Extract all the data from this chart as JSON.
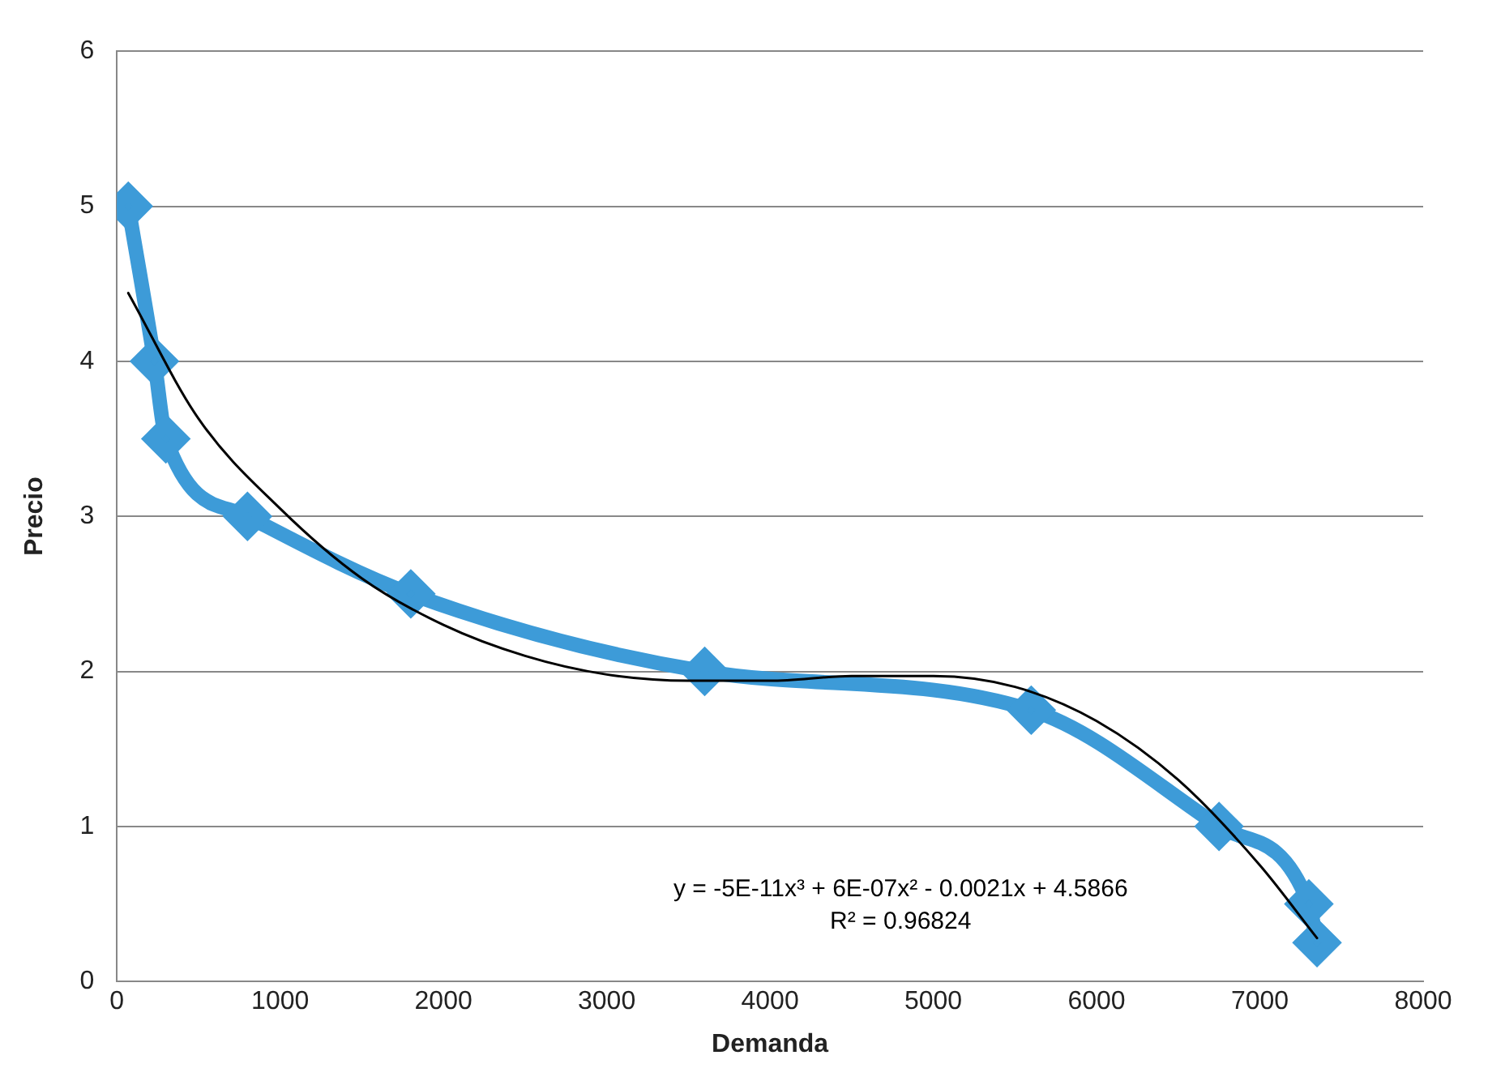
{
  "chart_data": {
    "type": "line",
    "xlabel": "Demanda",
    "ylabel": "Precio",
    "xlim": [
      0,
      8000
    ],
    "xticks": [
      0,
      1000,
      2000,
      3000,
      4000,
      5000,
      6000,
      7000,
      8000
    ],
    "ylim": [
      0,
      6
    ],
    "yticks": [
      0,
      1,
      2,
      3,
      4,
      5,
      6
    ],
    "grid": "y",
    "legend": false,
    "series": [
      {
        "color": "#3d9bd8",
        "marker": "diamond",
        "x": [
          70,
          230,
          300,
          800,
          1800,
          3600,
          5600,
          6750,
          7300,
          7350
        ],
        "values": [
          5,
          4,
          3.5,
          3,
          2.5,
          2,
          1.75,
          1,
          0.5,
          0.25
        ]
      },
      {
        "type": "line",
        "color": "#000000",
        "marker": "none",
        "x": [
          70,
          500,
          1000,
          1500,
          2000,
          2500,
          3000,
          3500,
          4000,
          4500,
          5000,
          5500,
          6000,
          6500,
          7000,
          7350
        ],
        "values": [
          4.44,
          3.63,
          3.05,
          2.6,
          2.3,
          2.1,
          1.98,
          1.94,
          1.94,
          1.97,
          1.97,
          1.9,
          1.68,
          1.3,
          0.75,
          0.28
        ]
      }
    ],
    "annotations": [
      "y = -5E-11x³ + 6E-07x² - 0.0021x + 4.5866",
      "R² = 0.96824"
    ]
  }
}
